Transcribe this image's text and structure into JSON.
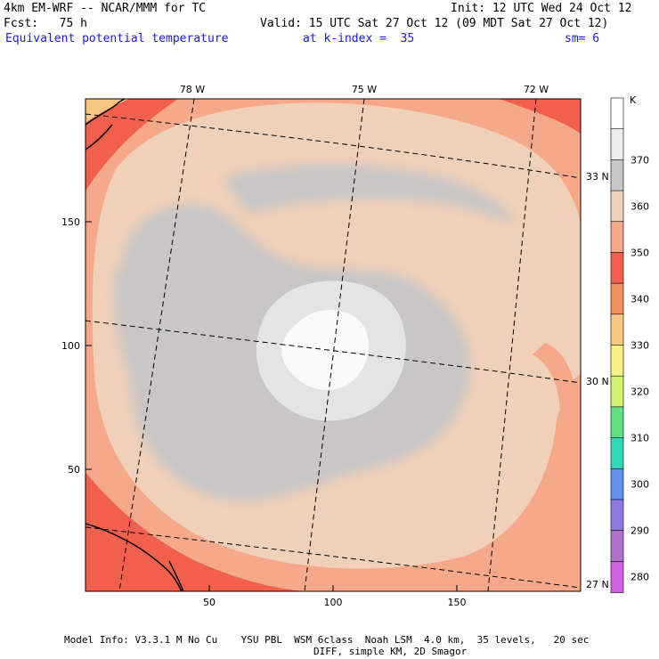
{
  "header": {
    "model_title": "4km EM-WRF -- NCAR/MMM for TC",
    "init": "Init: 12 UTC Wed 24 Oct 12",
    "fcst": "Fcst:   75 h",
    "valid": "Valid: 15 UTC Sat 27 Oct 12 (09 MDT Sat 27 Oct 12)",
    "field": "Equivalent potential temperature",
    "level": "at k-index =  35",
    "smoothing": "sm= 6"
  },
  "map": {
    "lon_labels": [
      "78 W",
      "75 W",
      "72 W"
    ],
    "lat_labels": [
      "33 N",
      "30 N",
      "27 N"
    ],
    "x_ticks": [
      "50",
      "100",
      "150"
    ],
    "y_ticks": [
      "50",
      "100",
      "150"
    ],
    "grid_extent": {
      "x": [
        1,
        199
      ],
      "y": [
        1,
        199
      ]
    }
  },
  "legend": {
    "unit": "K",
    "labels": [
      "370",
      "360",
      "350",
      "340",
      "330",
      "320",
      "310",
      "300",
      "290",
      "280"
    ],
    "colors": [
      "#ffffff",
      "#ececec",
      "#c8c6c6",
      "#f0d0b8",
      "#f5a98a",
      "#f0604c",
      "#f59060",
      "#f8c880",
      "#f8f080",
      "#d0f070",
      "#60e080",
      "#30d8b8",
      "#6090f0",
      "#8c78e0",
      "#b070d0",
      "#d060e0"
    ]
  },
  "footer": {
    "line1": "Model Info: V3.3.1 M No Cu    YSU PBL  WSM 6class  Noah LSM  4.0 km,  35 levels,   20 sec",
    "line2": "DIFF, simple KM, 2D Smagor"
  }
}
